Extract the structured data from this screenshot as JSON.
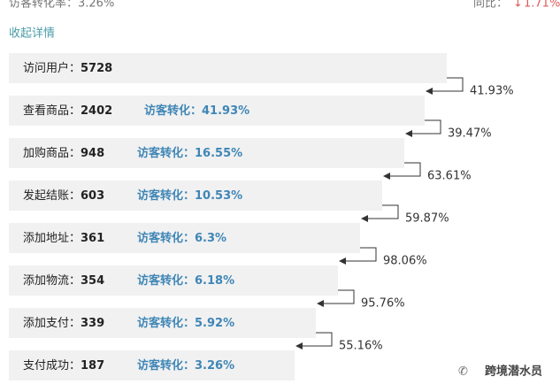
{
  "header": {
    "conversion": "访客转化率：3.26%",
    "yoy": "同比：",
    "yoy_value": "1.71%"
  },
  "toggle": "收起详情",
  "steps": [
    {
      "label": "访问用户：",
      "count": "5728"
    },
    {
      "label": "查看商品：",
      "count": "2402",
      "conversion_label": "访客转化：",
      "conversion": "41.93%"
    },
    {
      "label": "加购商品：",
      "count": "948",
      "conversion_label": "访客转化：",
      "conversion": "16.55%"
    },
    {
      "label": "发起结账：",
      "count": "603",
      "conversion_label": "访客转化：",
      "conversion": "10.53%"
    },
    {
      "label": "添加地址：",
      "count": "361",
      "conversion_label": "访客转化：",
      "conversion": "6.3%"
    },
    {
      "label": "添加物流：",
      "count": "354",
      "conversion_label": "访客转化：",
      "conversion": "6.18%"
    },
    {
      "label": "添加支付：",
      "count": "339",
      "conversion_label": "访客转化：",
      "conversion": "5.92%"
    },
    {
      "label": "支付成功：",
      "count": "187",
      "conversion_label": "访客转化：",
      "conversion": "3.26%"
    }
  ],
  "step_rates": [
    "41.93%",
    "39.47%",
    "63.61%",
    "59.87%",
    "98.06%",
    "95.76%",
    "55.16%"
  ],
  "watermark": "跨境潜水员"
}
